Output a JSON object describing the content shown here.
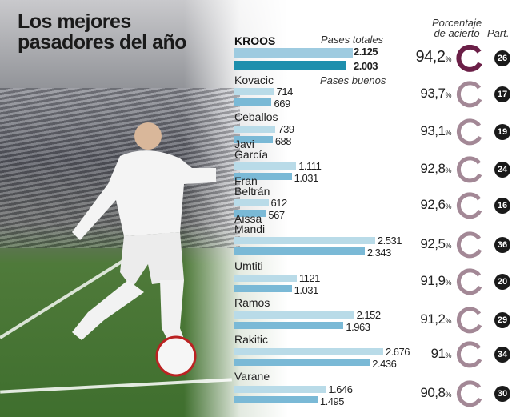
{
  "title_line1": "Los mejores",
  "title_line2": "pasadores del año",
  "headers": {
    "total": "Pases totales",
    "good": "Pases buenos",
    "pct_line1": "Porcentaje",
    "pct_line2": "de acierto",
    "matches": "Part."
  },
  "pct_suffix": "%",
  "colors": {
    "total_bar": "#b9dbe8",
    "good_bar": "#7ab9d6",
    "kroos_total": "#9ecbe0",
    "kroos_good": "#1e8fad",
    "ring_highlight": "#6b1f47",
    "ring": "#a38896"
  },
  "chart_data": {
    "type": "bar",
    "title": "Los mejores pasadores del año",
    "series": [
      {
        "name": "Pases totales"
      },
      {
        "name": "Pases buenos"
      }
    ],
    "players": [
      {
        "name": "KROOS",
        "total": 2125,
        "total_label": "2.125",
        "good": 2003,
        "good_label": "2.003",
        "pct": "94,2",
        "matches": "26"
      },
      {
        "name": "Kovacic",
        "total": 714,
        "total_label": "714",
        "good": 669,
        "good_label": "669",
        "pct": "93,7",
        "matches": "17"
      },
      {
        "name": "Ceballos",
        "total": 739,
        "total_label": "739",
        "good": 688,
        "good_label": "688",
        "pct": "93,1",
        "matches": "19"
      },
      {
        "name": "Javi García",
        "total": 1111,
        "total_label": "1.111",
        "good": 1031,
        "good_label": "1.031",
        "pct": "92,8",
        "matches": "24"
      },
      {
        "name": "Fran Beltrán",
        "total": 612,
        "total_label": "612",
        "good": 567,
        "good_label": "567",
        "pct": "92,6",
        "matches": "16"
      },
      {
        "name": "Aissa Mandi",
        "total": 2531,
        "total_label": "2.531",
        "good": 2343,
        "good_label": "2.343",
        "pct": "92,5",
        "matches": "36"
      },
      {
        "name": "Umtiti",
        "total": 1121,
        "total_label": "1121",
        "good": 1031,
        "good_label": "1.031",
        "pct": "91,9",
        "matches": "20"
      },
      {
        "name": "Ramos",
        "total": 2152,
        "total_label": "2.152",
        "good": 1963,
        "good_label": "1.963",
        "pct": "91,2",
        "matches": "29"
      },
      {
        "name": "Rakitic",
        "total": 2676,
        "total_label": "2.676",
        "good": 2436,
        "good_label": "2.436",
        "pct": "91",
        "matches": "34"
      },
      {
        "name": "Varane",
        "total": 1646,
        "total_label": "1.646",
        "good": 1495,
        "good_label": "1.495",
        "pct": "90,8",
        "matches": "30"
      }
    ]
  }
}
